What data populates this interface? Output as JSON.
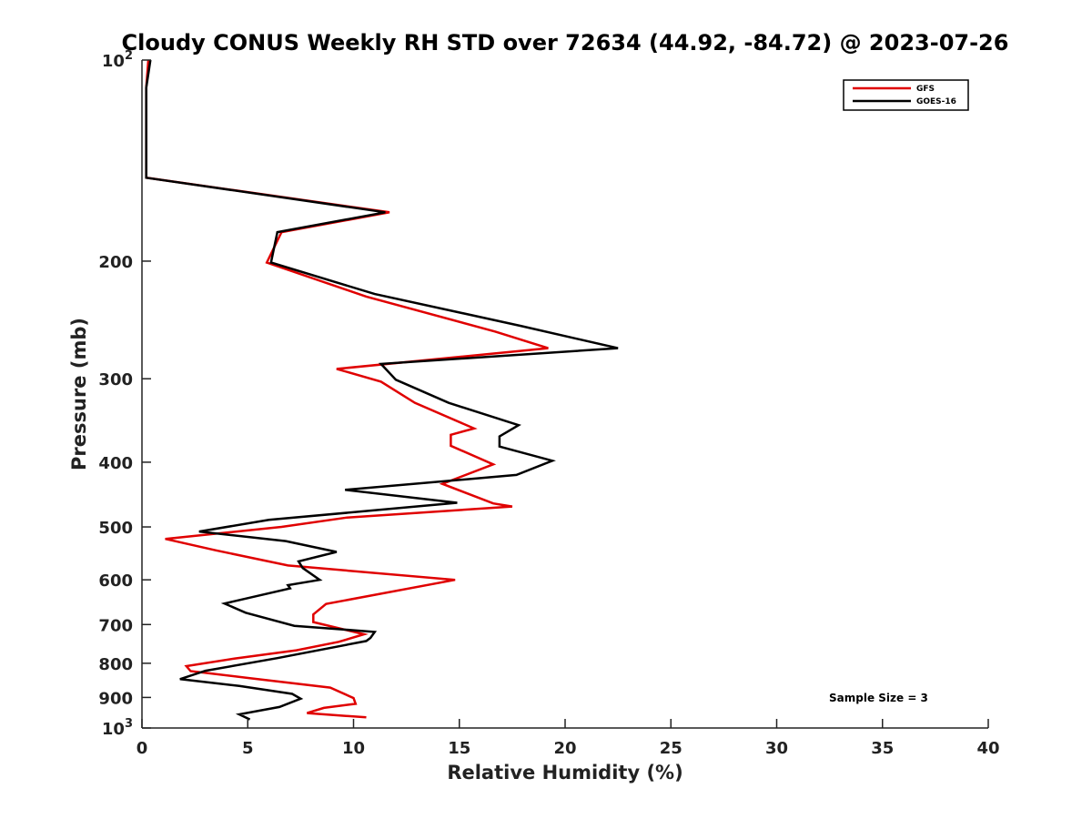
{
  "chart_data": {
    "type": "line",
    "title": "Cloudy CONUS Weekly RH STD over 72634 (44.92, -84.72) @ 2023-07-26",
    "xlabel": "Relative Humidity (%)",
    "ylabel": "Pressure (mb)",
    "xlim": [
      0,
      40
    ],
    "ylim": [
      100,
      1000
    ],
    "y_scale": "log",
    "y_reversed": true,
    "x_ticks": [
      0,
      5,
      10,
      15,
      20,
      25,
      30,
      35,
      40
    ],
    "y_ticks": [
      {
        "value": 100,
        "label": "10",
        "sup": "2"
      },
      {
        "value": 200,
        "label": "200"
      },
      {
        "value": 300,
        "label": "300"
      },
      {
        "value": 400,
        "label": "400"
      },
      {
        "value": 500,
        "label": "500"
      },
      {
        "value": 600,
        "label": "600"
      },
      {
        "value": 700,
        "label": "700"
      },
      {
        "value": 800,
        "label": "800"
      },
      {
        "value": 900,
        "label": "900"
      },
      {
        "value": 1000,
        "label": "10",
        "sup": "3"
      }
    ],
    "legend_position": "top-right",
    "grid": false,
    "annotation": "Sample Size = 3",
    "series": [
      {
        "name": "GFS",
        "color": "#e00000",
        "points": [
          [
            0.3,
            100
          ],
          [
            0.2,
            110
          ],
          [
            0.2,
            130
          ],
          [
            0.2,
            150
          ],
          [
            11.7,
            169
          ],
          [
            6.6,
            181
          ],
          [
            5.9,
            201
          ],
          [
            10.6,
            226
          ],
          [
            16.7,
            255
          ],
          [
            19.2,
            270
          ],
          [
            9.2,
            290
          ],
          [
            11.3,
            303
          ],
          [
            12.9,
            326
          ],
          [
            15.7,
            356
          ],
          [
            14.6,
            364
          ],
          [
            14.6,
            378
          ],
          [
            16.6,
            403
          ],
          [
            14.2,
            431
          ],
          [
            16.6,
            461
          ],
          [
            17.5,
            466
          ],
          [
            9.7,
            484
          ],
          [
            6.6,
            500
          ],
          [
            1.1,
            521
          ],
          [
            3.5,
            542
          ],
          [
            6.9,
            571
          ],
          [
            14.8,
            600
          ],
          [
            8.7,
            652
          ],
          [
            8.1,
            676
          ],
          [
            8.1,
            694
          ],
          [
            10.5,
            724
          ],
          [
            9.3,
            743
          ],
          [
            7.3,
            765
          ],
          [
            4.4,
            787
          ],
          [
            2.1,
            808
          ],
          [
            2.3,
            822
          ],
          [
            5.1,
            842
          ],
          [
            8.9,
            870
          ],
          [
            10.0,
            902
          ],
          [
            10.1,
            920
          ],
          [
            8.6,
            933
          ],
          [
            7.8,
            950
          ],
          [
            10.6,
            964
          ]
        ]
      },
      {
        "name": "GOES-16",
        "color": "#000000",
        "points": [
          [
            0.4,
            100
          ],
          [
            0.2,
            110
          ],
          [
            0.2,
            130
          ],
          [
            0.2,
            150
          ],
          [
            11.5,
            169
          ],
          [
            6.4,
            181
          ],
          [
            6.1,
            201
          ],
          [
            11.0,
            224
          ],
          [
            17.9,
            250
          ],
          [
            22.5,
            270
          ],
          [
            11.3,
            285
          ],
          [
            12.0,
            301
          ],
          [
            14.5,
            326
          ],
          [
            17.8,
            352
          ],
          [
            16.9,
            366
          ],
          [
            16.9,
            379
          ],
          [
            19.4,
            398
          ],
          [
            17.7,
            418
          ],
          [
            9.6,
            440
          ],
          [
            14.9,
            460
          ],
          [
            6.0,
            488
          ],
          [
            2.7,
            508
          ],
          [
            6.8,
            525
          ],
          [
            9.2,
            545
          ],
          [
            7.4,
            563
          ],
          [
            7.6,
            576
          ],
          [
            8.4,
            600
          ],
          [
            6.9,
            611
          ],
          [
            7.0,
            618
          ],
          [
            3.9,
            651
          ],
          [
            4.9,
            672
          ],
          [
            7.2,
            703
          ],
          [
            11.0,
            718
          ],
          [
            10.8,
            733
          ],
          [
            10.6,
            741
          ],
          [
            6.4,
            786
          ],
          [
            3.0,
            821
          ],
          [
            1.8,
            845
          ],
          [
            4.6,
            865
          ],
          [
            7.1,
            889
          ],
          [
            7.5,
            904
          ],
          [
            6.5,
            930
          ],
          [
            4.6,
            954
          ],
          [
            5.1,
            971
          ]
        ]
      }
    ]
  }
}
